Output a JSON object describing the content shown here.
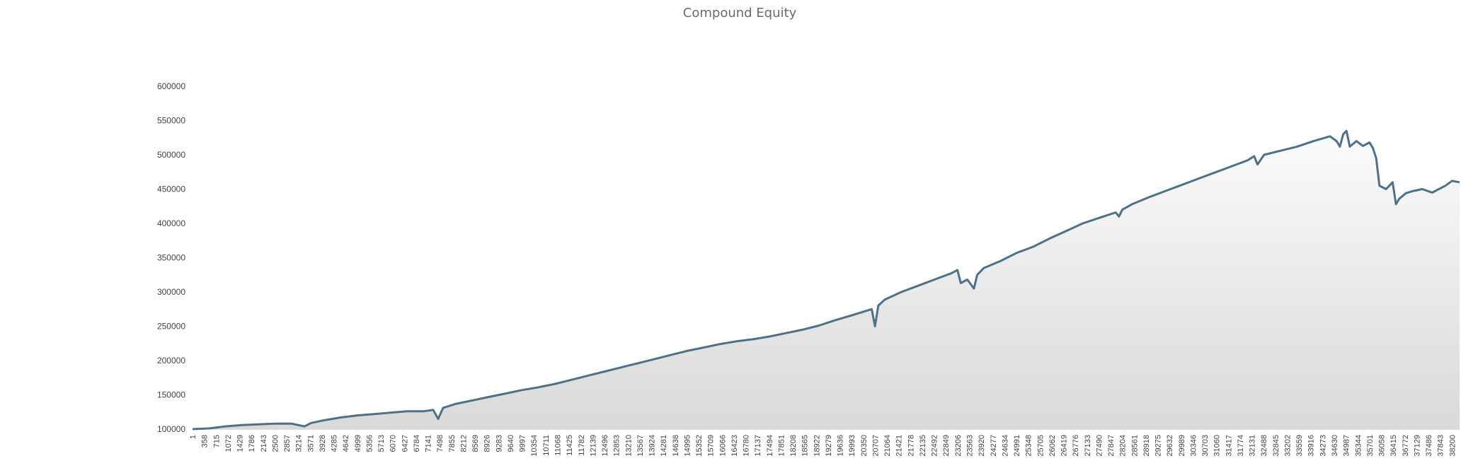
{
  "chart_data": {
    "type": "area",
    "title": "Compound Equity",
    "xlabel": "",
    "ylabel": "",
    "ylim": [
      100000,
      600000
    ],
    "yticks": [
      100000,
      150000,
      200000,
      250000,
      300000,
      350000,
      400000,
      450000,
      500000,
      550000,
      600000
    ],
    "xticks": [
      1,
      358,
      715,
      1072,
      1429,
      1786,
      2143,
      2500,
      2857,
      3214,
      3571,
      3928,
      4285,
      4642,
      4999,
      5356,
      5713,
      6070,
      6427,
      6784,
      7141,
      7498,
      7855,
      8212,
      8569,
      8926,
      9283,
      9640,
      9997,
      10354,
      10711,
      11068,
      11425,
      11782,
      12139,
      12496,
      12853,
      13210,
      13567,
      13924,
      14281,
      14638,
      14995,
      15352,
      15709,
      16066,
      16423,
      16780,
      17137,
      17494,
      17851,
      18208,
      18565,
      18922,
      19279,
      19636,
      19993,
      20350,
      20707,
      21064,
      21421,
      21778,
      22135,
      22492,
      22849,
      23206,
      23563,
      23920,
      24277,
      24634,
      24991,
      25348,
      25705,
      26062,
      26419,
      26776,
      27133,
      27490,
      27847,
      28204,
      28561,
      28918,
      29275,
      29632,
      29989,
      30346,
      30703,
      31060,
      31417,
      31774,
      32131,
      32488,
      32845,
      33202,
      33559,
      33916,
      34273,
      34630,
      34987,
      35344,
      35701,
      36058,
      36415,
      36772,
      37129,
      37486,
      37843,
      38200
    ],
    "xlim": [
      1,
      38430
    ],
    "grid": false,
    "line_color": "#4e7189",
    "fill_top_color": "#fbfbfb",
    "fill_bottom_color": "#d9d9d9",
    "series": [
      {
        "x": [
          1,
          500,
          1000,
          1500,
          2000,
          2500,
          3000,
          3200,
          3400,
          3600,
          3800,
          4000,
          4500,
          5000,
          5500,
          6000,
          6500,
          7000,
          7300,
          7450,
          7600,
          7800,
          8000,
          8500,
          9000,
          9500,
          10000,
          10500,
          11000,
          11500,
          12000,
          12500,
          13000,
          13500,
          14000,
          14500,
          15000,
          15500,
          16000,
          16500,
          17000,
          17500,
          18000,
          18500,
          19000,
          19500,
          20000,
          20400,
          20600,
          20700,
          20800,
          21000,
          21500,
          22000,
          22500,
          23000,
          23200,
          23300,
          23500,
          23700,
          23800,
          24000,
          24500,
          25000,
          25500,
          26000,
          26500,
          27000,
          27500,
          28000,
          28100,
          28200,
          28500,
          29000,
          29500,
          30000,
          30500,
          31000,
          31500,
          32000,
          32200,
          32300,
          32500,
          33000,
          33500,
          34000,
          34500,
          34700,
          34800,
          34900,
          35000,
          35100,
          35300,
          35500,
          35700,
          35800,
          35900,
          36000,
          36200,
          36400,
          36500,
          36600,
          36800,
          37000,
          37300,
          37600,
          37800,
          38000,
          38200,
          38430
        ],
        "values": [
          100000,
          101000,
          104000,
          106000,
          107000,
          108000,
          108000,
          106000,
          104000,
          109000,
          111000,
          113000,
          117000,
          120000,
          122000,
          124000,
          126000,
          126000,
          128000,
          115000,
          131000,
          134000,
          137000,
          142000,
          147000,
          152000,
          157000,
          161000,
          166000,
          172000,
          178000,
          184000,
          190000,
          196000,
          202000,
          208000,
          214000,
          219000,
          224000,
          228000,
          231000,
          235000,
          240000,
          245000,
          251000,
          259000,
          266000,
          272000,
          275000,
          250000,
          280000,
          289000,
          300000,
          309000,
          318000,
          327000,
          332000,
          313000,
          318000,
          305000,
          325000,
          335000,
          345000,
          357000,
          366000,
          378000,
          389000,
          400000,
          408000,
          416000,
          410000,
          420000,
          428000,
          438000,
          447000,
          456000,
          465000,
          474000,
          483000,
          492000,
          498000,
          486000,
          500000,
          506000,
          512000,
          520000,
          527000,
          520000,
          512000,
          530000,
          535000,
          512000,
          520000,
          513000,
          518000,
          510000,
          495000,
          455000,
          450000,
          460000,
          428000,
          436000,
          444000,
          447000,
          450000,
          445000,
          450000,
          455000,
          462000,
          460000
        ]
      }
    ]
  }
}
